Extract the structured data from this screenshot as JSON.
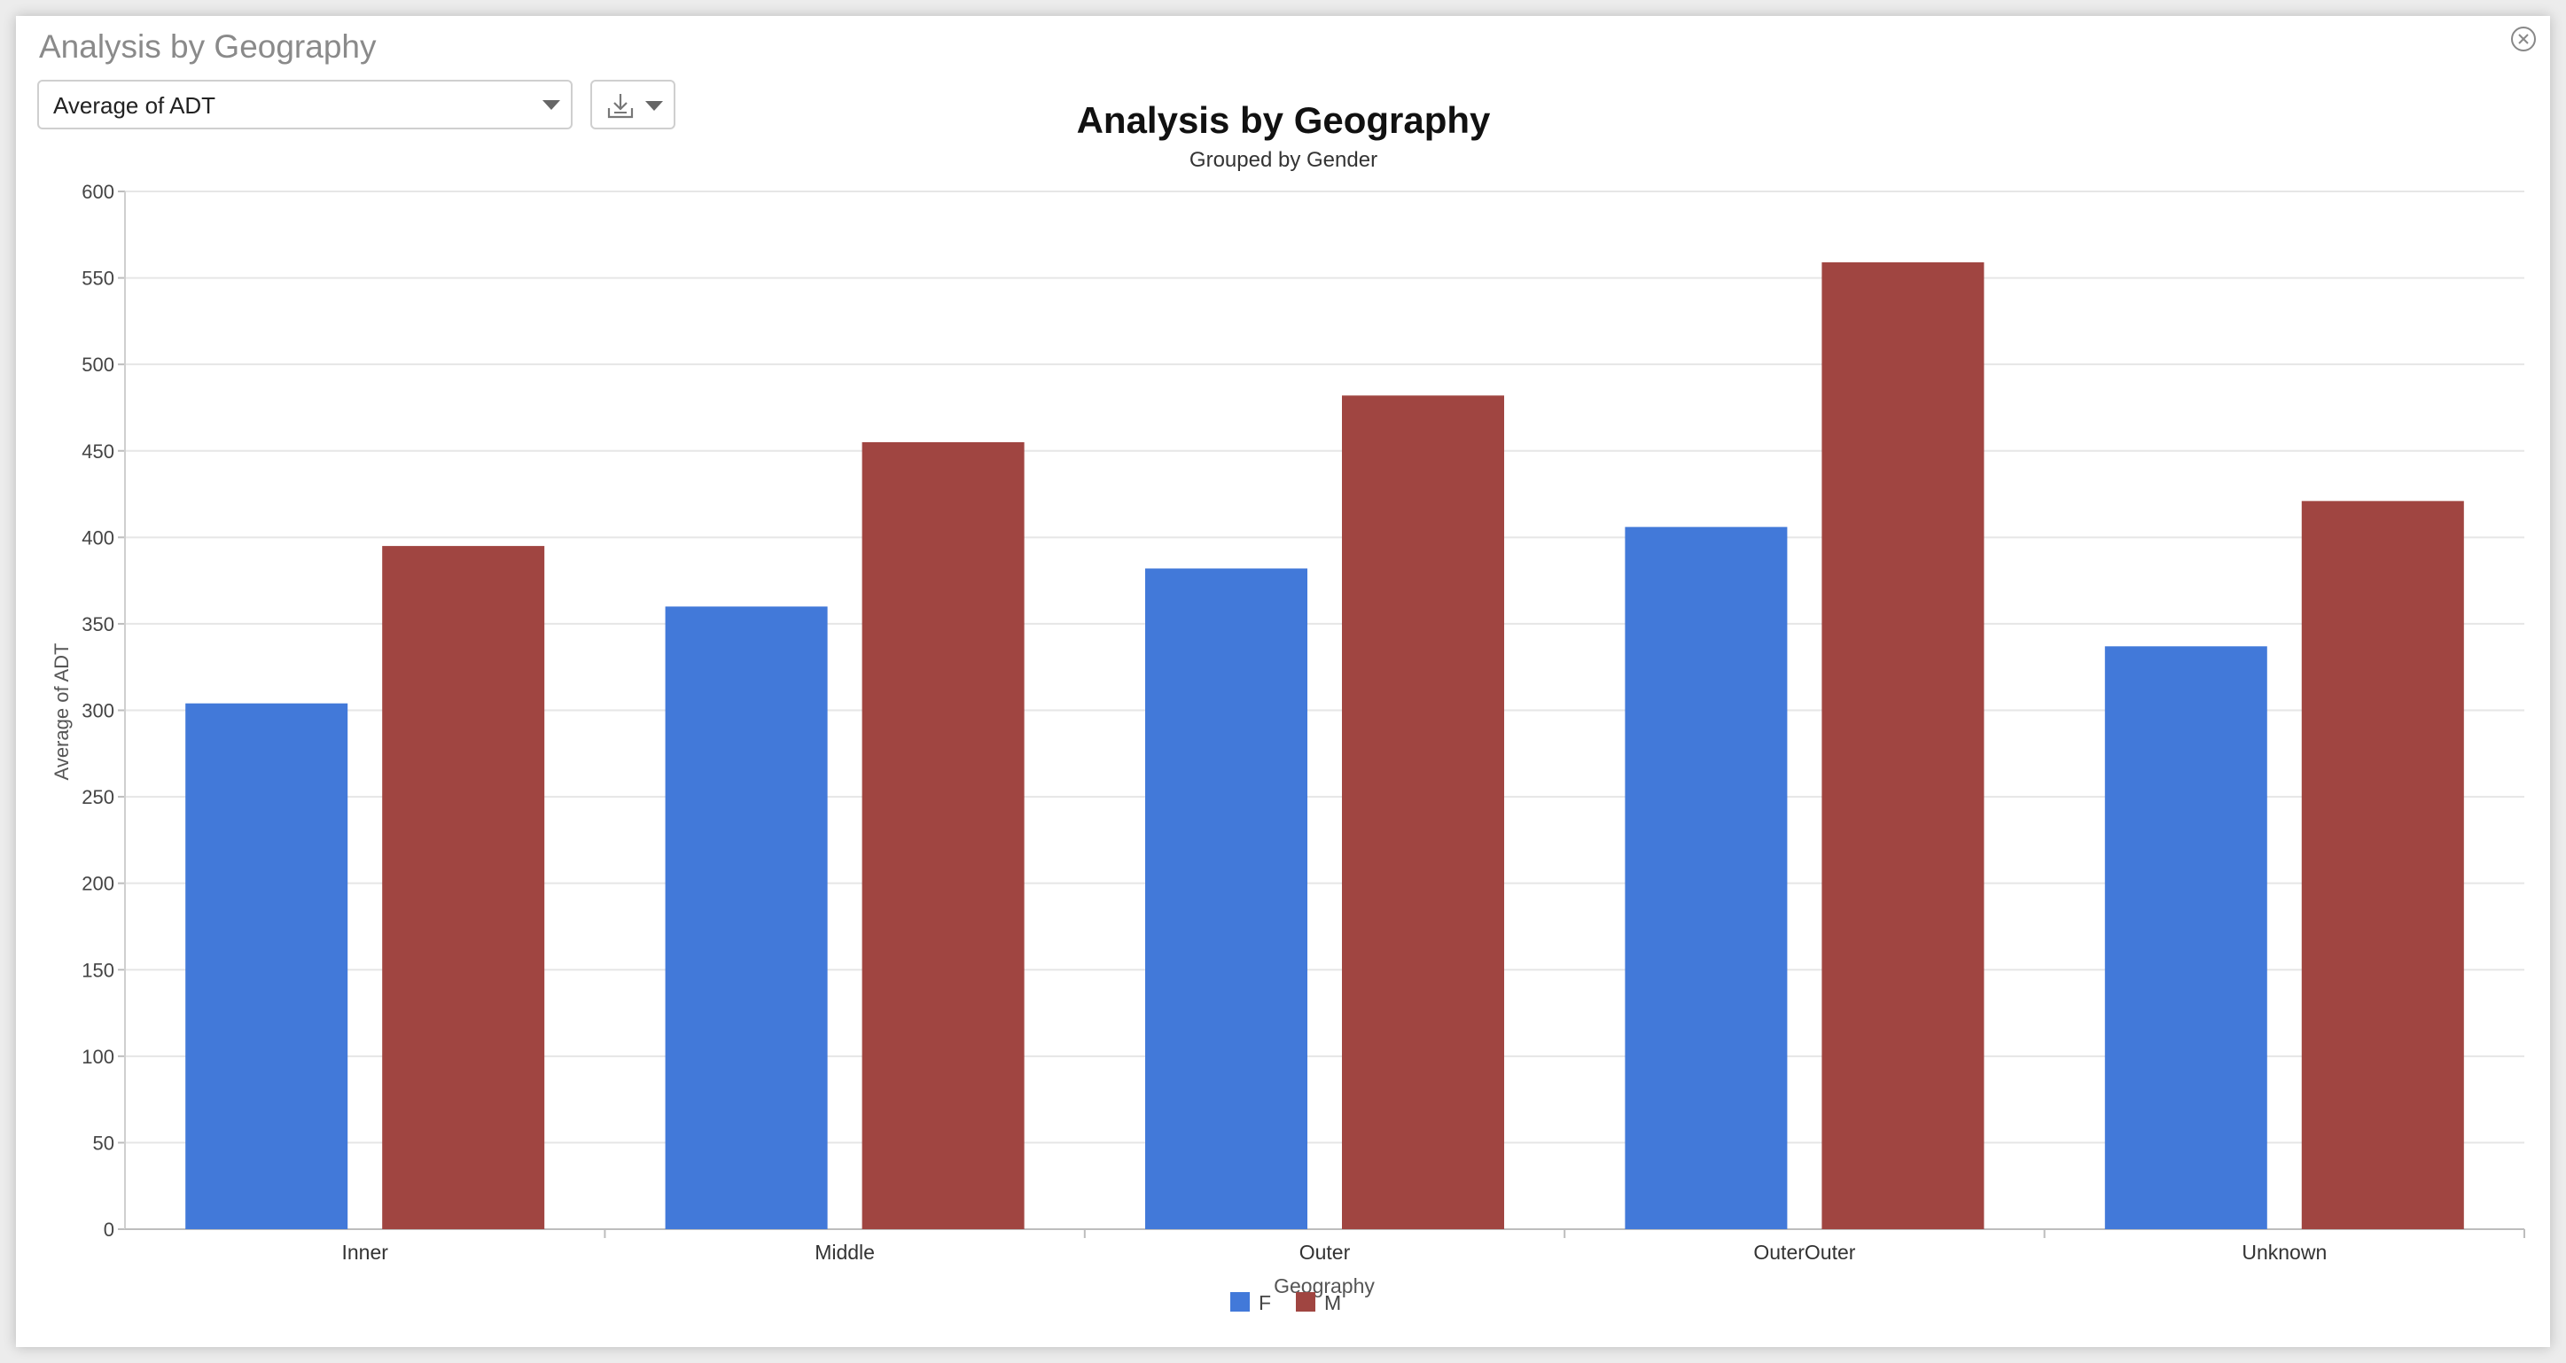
{
  "panel": {
    "title": "Analysis by Geography",
    "close_icon": "close-circle-icon",
    "measure_select": {
      "value": "Average of ADT",
      "icon": "chevron-down-icon"
    },
    "export": {
      "icon": "download-icon",
      "caret_icon": "chevron-down-icon"
    }
  },
  "chart_data": {
    "type": "bar",
    "title": "Analysis by Geography",
    "subtitle": "Grouped by Gender",
    "xlabel": "Geography",
    "ylabel": "Average of ADT",
    "categories": [
      "Inner",
      "Middle",
      "Outer",
      "OuterOuter",
      "Unknown"
    ],
    "series": [
      {
        "name": "F",
        "color": "#4279d9",
        "values": [
          304,
          360,
          382,
          406,
          337
        ]
      },
      {
        "name": "M",
        "color": "#a04541",
        "values": [
          395,
          455,
          482,
          559,
          421
        ]
      }
    ],
    "ylim": [
      0,
      600
    ],
    "yticks": [
      0,
      50,
      100,
      150,
      200,
      250,
      300,
      350,
      400,
      450,
      500,
      550,
      600
    ],
    "grid": true,
    "legend": "bottom-center"
  }
}
